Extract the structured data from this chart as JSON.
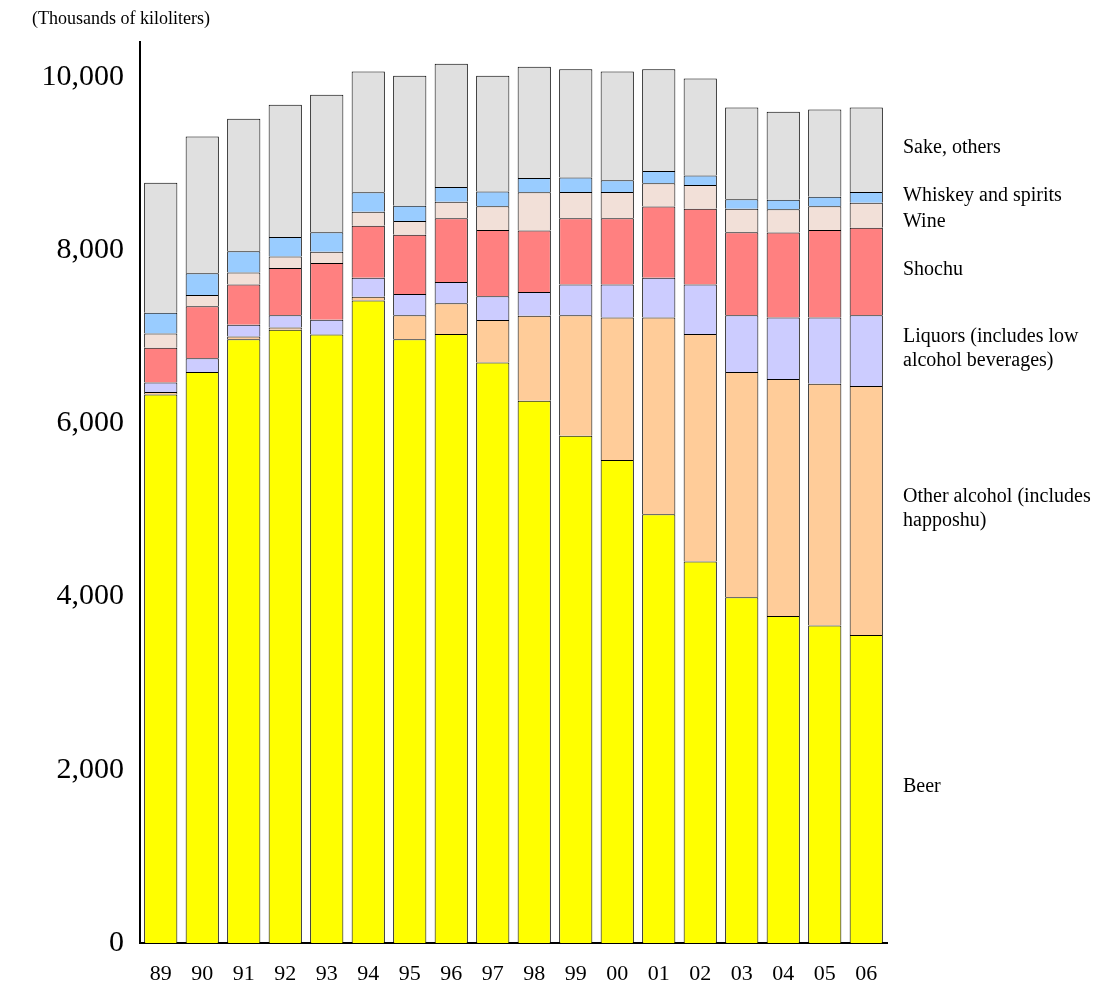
{
  "chart_data": {
    "type": "bar",
    "stacked": true,
    "ylabel": "(Thousands of kiloliters)",
    "categories": [
      "89",
      "90",
      "91",
      "92",
      "93",
      "94",
      "95",
      "96",
      "97",
      "98",
      "99",
      "00",
      "01",
      "02",
      "03",
      "04",
      "05",
      "06"
    ],
    "ylim": [
      0,
      10400
    ],
    "yticks": [
      0,
      {
        "value": 2000,
        "label": "2,000"
      },
      {
        "value": 4000,
        "label": "4,000"
      },
      {
        "value": 6000,
        "label": "6,000"
      },
      {
        "value": 8000,
        "label": "8,000"
      },
      {
        "value": 10000,
        "label": "10,000"
      }
    ],
    "series": [
      {
        "name": "Beer",
        "color": "#ffff00",
        "values": [
          6330,
          6590,
          6970,
          7080,
          7025,
          7415,
          6970,
          7030,
          6700,
          6260,
          5855,
          5575,
          4950,
          4405,
          3990,
          3775,
          3665,
          3555
        ]
      },
      {
        "name": "Other alcohol (includes happoshu)",
        "color": "#ffcc99",
        "values": [
          30,
          null,
          30,
          25,
          null,
          45,
          275,
          355,
          490,
          980,
          1390,
          1645,
          2270,
          2625,
          2600,
          2735,
          2790,
          2875
        ]
      },
      {
        "name": "Liquors (includes low alcohol beverages)",
        "color": "#ccccff",
        "values": [
          110,
          160,
          135,
          140,
          170,
          220,
          245,
          245,
          275,
          275,
          355,
          380,
          460,
          570,
          655,
          710,
          765,
          815
        ]
      },
      {
        "name": "Shochu",
        "color": "#ff8080",
        "values": [
          400,
          600,
          465,
          545,
          655,
          600,
          685,
          735,
          765,
          710,
          765,
          765,
          820,
          875,
          960,
          980,
          1010,
          1010
        ]
      },
      {
        "name": "Wine",
        "color": "#f2e0d8",
        "values": [
          165,
          130,
          140,
          135,
          130,
          160,
          160,
          190,
          275,
          440,
          305,
          305,
          270,
          275,
          270,
          270,
          275,
          290
        ]
      },
      {
        "name": "Whiskey and spirits",
        "color": "#99ccff",
        "values": [
          240,
          250,
          245,
          225,
          225,
          225,
          175,
          170,
          170,
          165,
          165,
          135,
          140,
          110,
          110,
          110,
          110,
          125
        ]
      },
      {
        "name": "Sake, others",
        "color": "#e0e0e0",
        "values": [
          1500,
          1580,
          1530,
          1525,
          1585,
          1395,
          1500,
          1425,
          1335,
          1285,
          1250,
          1255,
          1175,
          1120,
          1060,
          1015,
          1005,
          975
        ]
      }
    ]
  }
}
